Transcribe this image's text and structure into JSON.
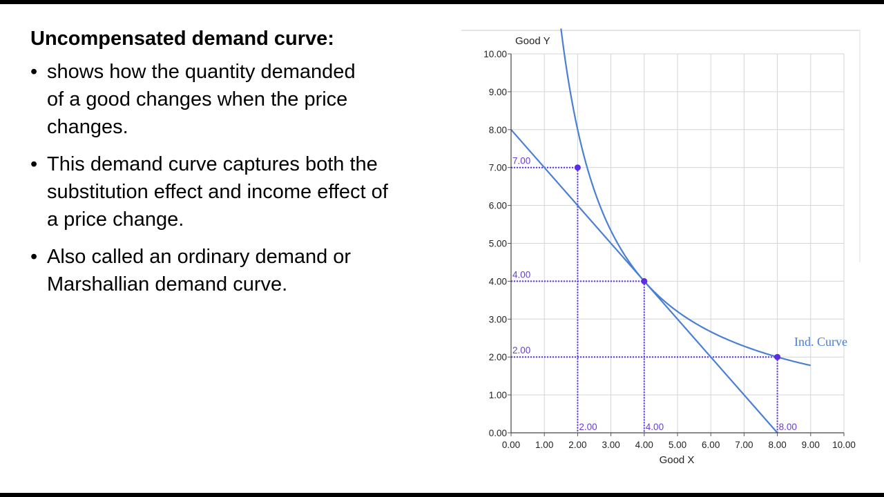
{
  "slide": {
    "heading": "Uncompensated demand curve:",
    "bullets": [
      "shows how the quantity demanded of a good changes when the price changes.",
      "This demand curve captures both the substitution effect and income effect of a price change.",
      "Also called an ordinary demand or Marshallian demand curve."
    ]
  },
  "colors": {
    "curve": "#4a7fd4",
    "guide": "#5b2ee0",
    "point": "#5b2ee0",
    "grid": "#d4d4d4"
  },
  "chart_data": {
    "type": "line",
    "xlabel": "Good X",
    "ylabel": "Good Y",
    "xlim": [
      0,
      10
    ],
    "ylim": [
      0,
      10
    ],
    "grid": true,
    "x_ticks": [
      "0.00",
      "1.00",
      "2.00",
      "3.00",
      "4.00",
      "5.00",
      "6.00",
      "7.00",
      "8.00",
      "9.00",
      "10.00"
    ],
    "y_ticks": [
      "0.00",
      "1.00",
      "2.00",
      "3.00",
      "4.00",
      "5.00",
      "6.00",
      "7.00",
      "8.00",
      "9.00",
      "10.00"
    ],
    "series": [
      {
        "kind": "budget_line",
        "points": [
          [
            0,
            8
          ],
          [
            8,
            0
          ]
        ]
      },
      {
        "name": "Ind. Curve",
        "kind": "indifference_curve",
        "equation": "y = 16 / x",
        "x_range": [
          1.5,
          9.0
        ]
      }
    ],
    "highlight_points": [
      {
        "x": 2,
        "y": 7,
        "x_label": "2.00",
        "y_label": "7.00"
      },
      {
        "x": 4,
        "y": 4,
        "x_label": "4.00",
        "y_label": "4.00"
      },
      {
        "x": 8,
        "y": 2,
        "x_label": "8.00",
        "y_label": "2.00"
      }
    ]
  }
}
